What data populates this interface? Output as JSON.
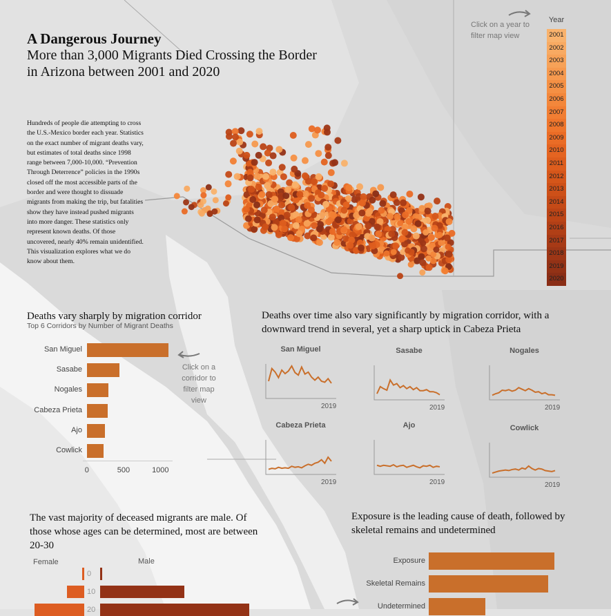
{
  "header": {
    "title": "A Dangerous Journey",
    "subtitle": "More than 3,000 Migrants Died Crossing the Border in Arizona between 2001 and 2020",
    "intro": "Hundreds of people die attempting to cross the U.S.-Mexico border each year. Statistics on the exact number of migrant deaths vary, but estimates of total deaths since 1998 range between 7,000-10,000. “Prevention Through Deterrence” policies in the 1990s closed off the most accessible parts of the border and were thought to dissuade migrants from making the trip, but fatalities show they have instead pushed migrants into more danger. These statistics only represent known deaths. Of those uncovered, nearly 40% remain unidentified. This visualization explores what we do know about them."
  },
  "year_filter": {
    "hint": "Click on a year to filter map view",
    "title": "Year",
    "years": [
      {
        "label": "2001",
        "color": "#f9b26c"
      },
      {
        "label": "2002",
        "color": "#f8aa62"
      },
      {
        "label": "2003",
        "color": "#f7a258"
      },
      {
        "label": "2004",
        "color": "#f6994e"
      },
      {
        "label": "2005",
        "color": "#f59044"
      },
      {
        "label": "2006",
        "color": "#f3873b"
      },
      {
        "label": "2007",
        "color": "#f17e33"
      },
      {
        "label": "2008",
        "color": "#ee752c"
      },
      {
        "label": "2009",
        "color": "#ea6c26"
      },
      {
        "label": "2010",
        "color": "#e46421"
      },
      {
        "label": "2011",
        "color": "#dd5d1d"
      },
      {
        "label": "2012",
        "color": "#d5561a"
      },
      {
        "label": "2013",
        "color": "#cd5018"
      },
      {
        "label": "2014",
        "color": "#c44a17"
      },
      {
        "label": "2015",
        "color": "#bb4416"
      },
      {
        "label": "2016",
        "color": "#b13f16"
      },
      {
        "label": "2017",
        "color": "#a73a16"
      },
      {
        "label": "2018",
        "color": "#9d3616"
      },
      {
        "label": "2019",
        "color": "#933216"
      },
      {
        "label": "2020",
        "color": "#8a2e16"
      }
    ]
  },
  "corridors": {
    "title": "Deaths vary sharply by migration corridor",
    "subtitle": "Top 6 Corridors by Number of Migrant Deaths",
    "hint": "Click on a corridor to filter map view",
    "chart_data": {
      "type": "bar",
      "categories": [
        "San Miguel",
        "Sasabe",
        "Nogales",
        "Cabeza Prieta",
        "Ajo",
        "Cowlick"
      ],
      "values": [
        1100,
        440,
        290,
        280,
        245,
        220
      ],
      "xticks": [
        "0",
        "500",
        "1000"
      ],
      "xlim": [
        0,
        1250
      ]
    }
  },
  "trends": {
    "title": "Deaths over time also vary significantly by migration corridor, with a downward trend in several, yet a sharp uptick in Cabeza Prieta",
    "chart_data": [
      {
        "type": "line",
        "name": "San Miguel",
        "tick": "2019",
        "values": [
          30,
          55,
          48,
          37,
          52,
          45,
          50,
          60,
          47,
          42,
          58,
          44,
          48,
          38,
          32,
          38,
          30,
          28,
          35,
          26
        ]
      },
      {
        "type": "line",
        "name": "Sasabe",
        "tick": "2019",
        "values": [
          8,
          22,
          18,
          15,
          35,
          25,
          28,
          20,
          24,
          18,
          22,
          16,
          20,
          14,
          14,
          16,
          12,
          12,
          10,
          6
        ]
      },
      {
        "type": "line",
        "name": "Nogales",
        "tick": "2019",
        "values": [
          5,
          8,
          10,
          15,
          14,
          16,
          13,
          15,
          20,
          17,
          14,
          18,
          15,
          11,
          12,
          8,
          10,
          6,
          6,
          5
        ]
      },
      {
        "type": "line",
        "name": "Cabeza Prieta",
        "tick": "2019",
        "values": [
          6,
          8,
          7,
          10,
          8,
          9,
          8,
          12,
          10,
          11,
          9,
          13,
          16,
          14,
          18,
          20,
          25,
          18,
          30,
          22
        ]
      },
      {
        "type": "line",
        "name": "Ajo",
        "tick": "2019",
        "values": [
          14,
          12,
          14,
          13,
          12,
          15,
          11,
          13,
          14,
          10,
          12,
          14,
          11,
          9,
          13,
          12,
          14,
          10,
          12,
          11
        ]
      },
      {
        "type": "line",
        "name": "Cowlick",
        "tick": "2019",
        "values": [
          4,
          6,
          8,
          9,
          10,
          9,
          11,
          12,
          10,
          14,
          12,
          18,
          13,
          10,
          13,
          12,
          9,
          8,
          7,
          9
        ]
      }
    ]
  },
  "gender": {
    "title": "The vast majority of deceased migrants are male. Of those whose ages can be determined, most are between 20-30",
    "female_label": "Female",
    "male_label": "Male",
    "chart_data": {
      "type": "bar",
      "categories": [
        "0",
        "10",
        "20"
      ],
      "series": [
        {
          "name": "Female",
          "values": [
            3,
            25,
            72
          ]
        },
        {
          "name": "Male",
          "values": [
            3,
            122,
            216
          ]
        }
      ]
    }
  },
  "causes": {
    "title": "Exposure is the leading cause of death, followed by skeletal remains and undetermined",
    "chart_data": {
      "type": "bar",
      "categories": [
        "Exposure",
        "Skeletal Remains",
        "Undetermined"
      ],
      "values": [
        1000,
        950,
        450
      ]
    }
  },
  "colors": {
    "bar": "#c96f2b",
    "line": "#c96f2b",
    "female": "#dd5d22",
    "male": "#933216",
    "map_land": "#d6d6d6",
    "map_sea": "#ffffff"
  }
}
